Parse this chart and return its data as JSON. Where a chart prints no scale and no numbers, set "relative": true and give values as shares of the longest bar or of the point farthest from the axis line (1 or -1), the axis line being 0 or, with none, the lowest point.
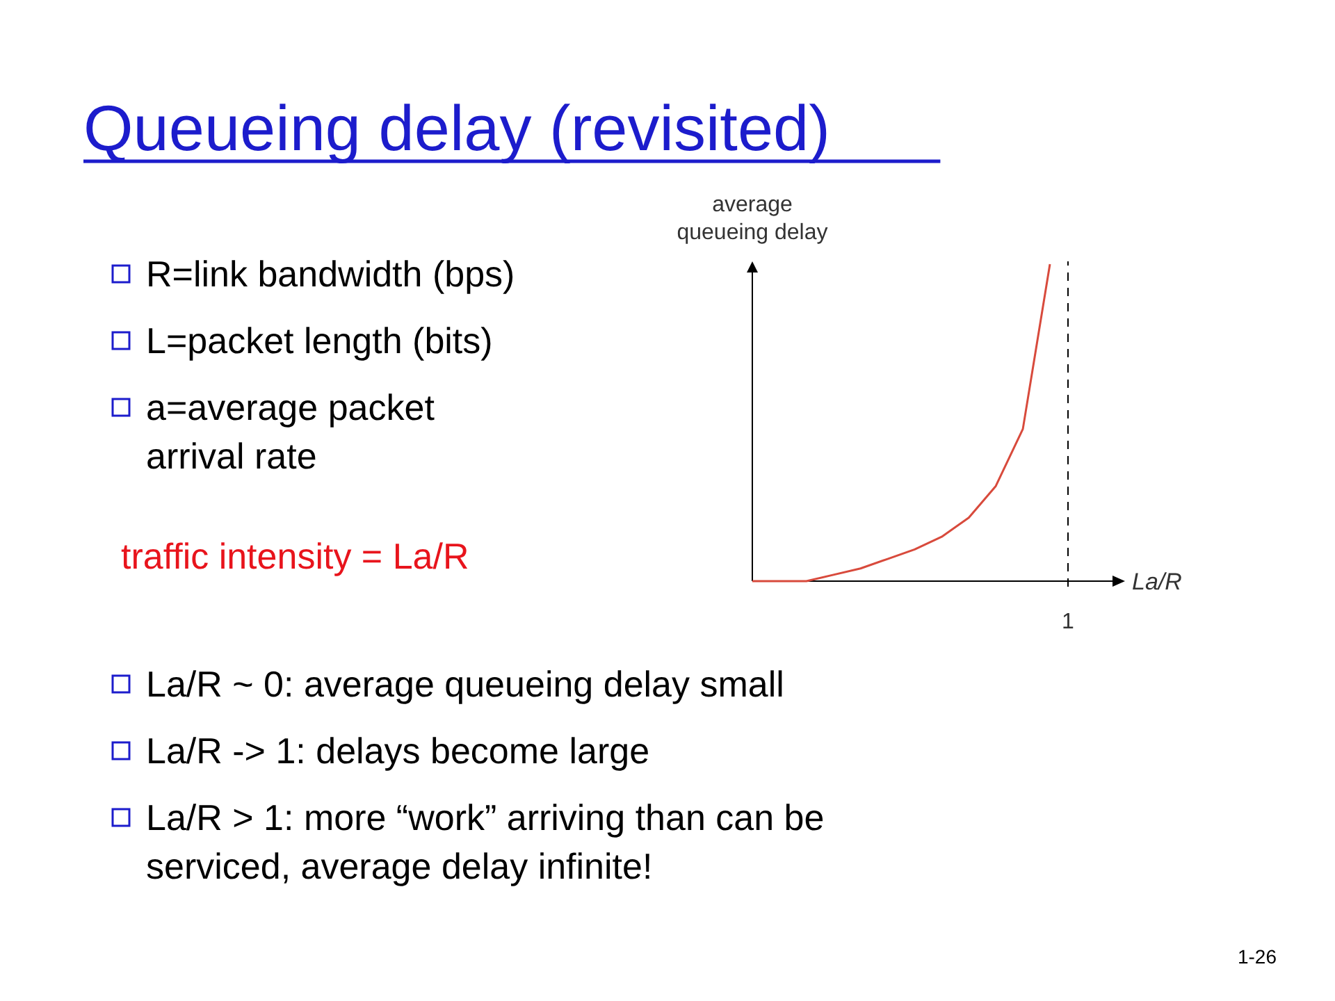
{
  "chart_data": {
    "type": "line",
    "title": "Queueing delay (revisited)",
    "ylabel": "average queueing delay",
    "xlabel": "La/R",
    "relative": true,
    "categories": [
      null,
      null,
      null,
      null,
      null,
      null,
      null,
      null,
      null,
      null,
      null,
      null
    ],
    "series": [
      {
        "color": "#d84a3c",
        "values": [
          0,
          0,
          0,
          0.02,
          0.04,
          0.07,
          0.1,
          0.14,
          0.2,
          0.3,
          0.48,
          1
        ]
      }
    ],
    "marker": "none",
    "line_style": "solid",
    "annotations": [
      "R=link bandwidth (bps)",
      "L=packet length (bits)",
      "a=average packet arrival rate",
      "traffic intensity = La/R",
      "La/R ~ 0: average queueing delay small",
      "La/R -> 1: delays become large",
      "La/R > 1: more “work” arriving than can be serviced, average delay infinite!",
      "1-26",
      "1"
    ]
  }
}
